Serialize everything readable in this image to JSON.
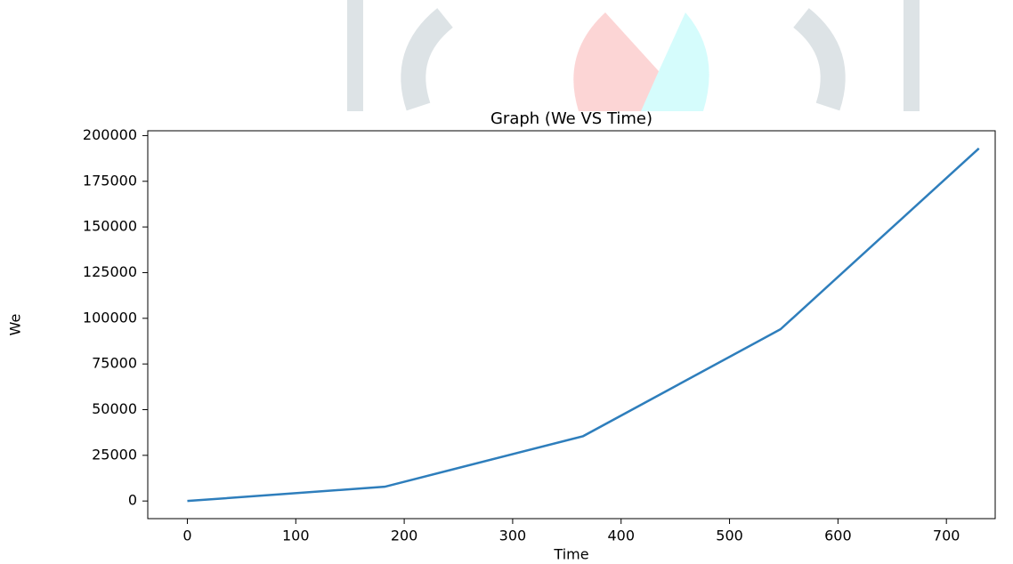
{
  "chart_data": {
    "type": "line",
    "title": "Graph (We VS Time)",
    "x_label": "Time",
    "y_label": "We",
    "x": [
      0,
      182,
      365,
      547,
      730
    ],
    "series": [
      {
        "name": "We",
        "color": "#2e7ebc",
        "values": [
          0,
          7800,
          35500,
          94000,
          193000
        ]
      }
    ],
    "xlim": [
      -36.5,
      745
    ],
    "ylim": [
      -9650,
      202650
    ],
    "xticks": [
      0,
      100,
      200,
      300,
      400,
      500,
      600,
      700
    ],
    "yticks": [
      0,
      25000,
      50000,
      75000,
      100000,
      125000,
      150000,
      175000,
      200000
    ],
    "grid": false
  }
}
